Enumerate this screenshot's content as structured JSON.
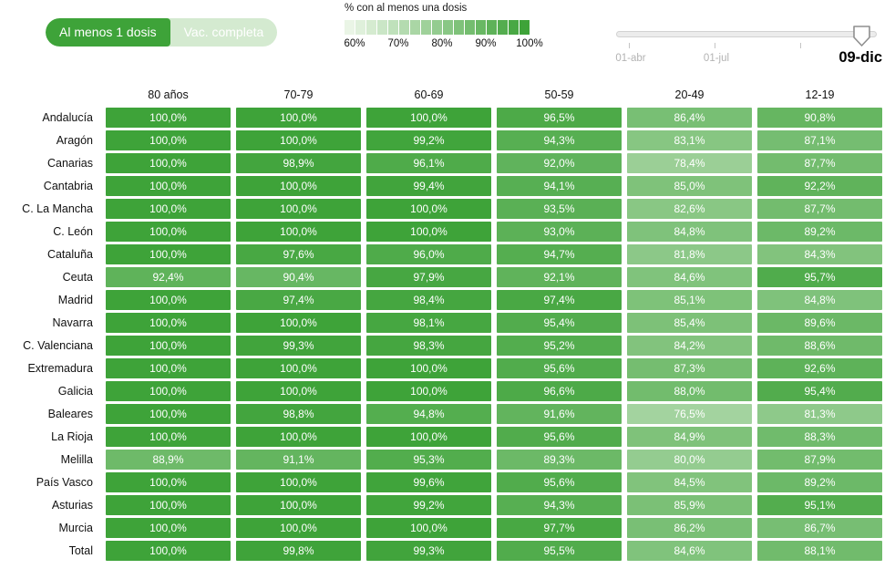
{
  "toggle": {
    "option1": "Al menos 1 dosis",
    "option2": "Vac. completa",
    "selected": "Al menos 1 dosis"
  },
  "legend": {
    "title": "% con al menos una dosis",
    "tick_labels": [
      "60%",
      "70%",
      "80%",
      "90%",
      "100%"
    ],
    "steps": 17,
    "min": 60,
    "max": 100
  },
  "slider": {
    "tick_labels": [
      "01-abr",
      "01-jul"
    ],
    "current_date": "09-dic"
  },
  "colors": {
    "scale_min": "#eaf5e6",
    "scale_max": "#3ea339",
    "toggle_active_bg": "#3ea339",
    "toggle_inactive_bg": "#d4ead0"
  },
  "chart_data": {
    "type": "heatmap",
    "title": "% con al menos una dosis",
    "columns": [
      "80 años",
      "70-79",
      "60-69",
      "50-59",
      "20-49",
      "12-19"
    ],
    "rows": [
      {
        "label": "Andalucía",
        "values": [
          100.0,
          100.0,
          100.0,
          96.5,
          86.4,
          90.8
        ]
      },
      {
        "label": "Aragón",
        "values": [
          100.0,
          100.0,
          99.2,
          94.3,
          83.1,
          87.1
        ]
      },
      {
        "label": "Canarias",
        "values": [
          100.0,
          98.9,
          96.1,
          92.0,
          78.4,
          87.7
        ]
      },
      {
        "label": "Cantabria",
        "values": [
          100.0,
          100.0,
          99.4,
          94.1,
          85.0,
          92.2
        ]
      },
      {
        "label": "C. La Mancha",
        "values": [
          100.0,
          100.0,
          100.0,
          93.5,
          82.6,
          87.7
        ]
      },
      {
        "label": "C. León",
        "values": [
          100.0,
          100.0,
          100.0,
          93.0,
          84.8,
          89.2
        ]
      },
      {
        "label": "Cataluña",
        "values": [
          100.0,
          97.6,
          96.0,
          94.7,
          81.8,
          84.3
        ]
      },
      {
        "label": "Ceuta",
        "values": [
          92.4,
          90.4,
          97.9,
          92.1,
          84.6,
          95.7
        ]
      },
      {
        "label": "Madrid",
        "values": [
          100.0,
          97.4,
          98.4,
          97.4,
          85.1,
          84.8
        ]
      },
      {
        "label": "Navarra",
        "values": [
          100.0,
          100.0,
          98.1,
          95.4,
          85.4,
          89.6
        ]
      },
      {
        "label": "C. Valenciana",
        "values": [
          100.0,
          99.3,
          98.3,
          95.2,
          84.2,
          88.6
        ]
      },
      {
        "label": "Extremadura",
        "values": [
          100.0,
          100.0,
          100.0,
          95.6,
          87.3,
          92.6
        ]
      },
      {
        "label": "Galicia",
        "values": [
          100.0,
          100.0,
          100.0,
          96.6,
          88.0,
          95.4
        ]
      },
      {
        "label": "Baleares",
        "values": [
          100.0,
          98.8,
          94.8,
          91.6,
          76.5,
          81.3
        ]
      },
      {
        "label": "La Rioja",
        "values": [
          100.0,
          100.0,
          100.0,
          95.6,
          84.9,
          88.3
        ]
      },
      {
        "label": "Melilla",
        "values": [
          88.9,
          91.1,
          95.3,
          89.3,
          80.0,
          87.9
        ]
      },
      {
        "label": "País Vasco",
        "values": [
          100.0,
          100.0,
          99.6,
          95.6,
          84.5,
          89.2
        ]
      },
      {
        "label": "Asturias",
        "values": [
          100.0,
          100.0,
          99.2,
          94.3,
          85.9,
          95.1
        ]
      },
      {
        "label": "Murcia",
        "values": [
          100.0,
          100.0,
          100.0,
          97.7,
          86.2,
          86.7
        ]
      },
      {
        "label": "Total",
        "values": [
          100.0,
          99.8,
          99.3,
          95.5,
          84.6,
          88.1
        ]
      }
    ],
    "value_format": "percent-comma-decimal",
    "color_scale": {
      "min": 60,
      "max": 100,
      "min_color": "#eaf5e6",
      "max_color": "#3ea339"
    },
    "legend_position": "top",
    "grid": false
  }
}
